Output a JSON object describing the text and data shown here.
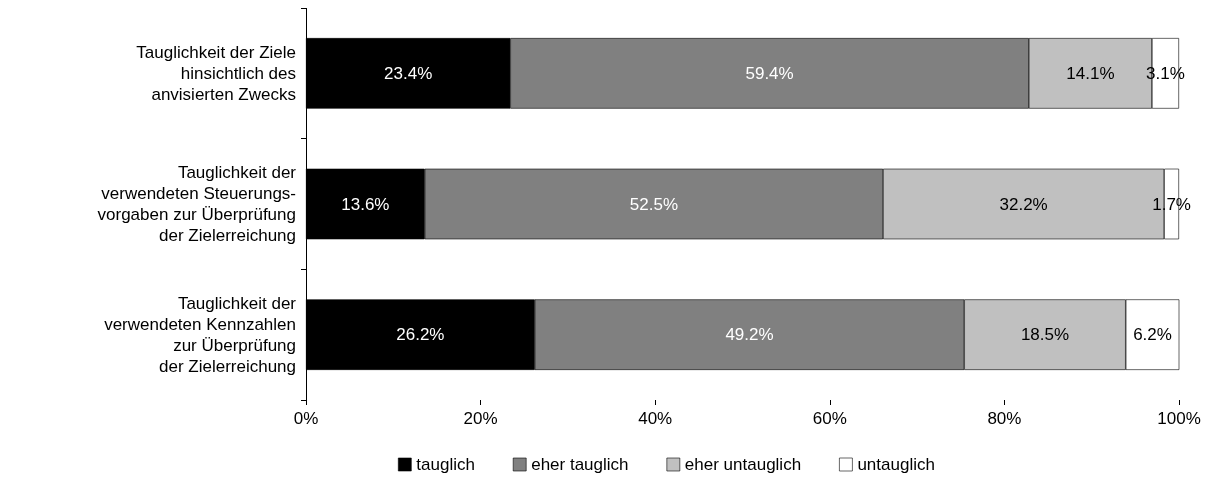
{
  "chart_data": {
    "type": "bar",
    "orientation": "horizontal",
    "stacked": true,
    "categories": [
      "Tauglichkeit der Ziele\nhinsichtlich des\nanvisierten Zwecks",
      "Tauglichkeit der\nverwendeten Steuerungs-\nvorgaben zur Überprüfung\nder Zielerreichung",
      "Tauglichkeit der\nverwendeten Kennzahlen\nzur Überprüfung\nder Zielerreichung"
    ],
    "series": [
      {
        "name": "tauglich",
        "color": "#000000",
        "values": [
          23.4,
          13.6,
          26.2
        ],
        "value_labels": [
          "23.4%",
          "13.6%",
          "26.2%"
        ]
      },
      {
        "name": "eher tauglich",
        "color": "#808080",
        "values": [
          59.4,
          52.5,
          49.2
        ],
        "value_labels": [
          "59.4%",
          "52.5%",
          "49.2%"
        ]
      },
      {
        "name": "eher untauglich",
        "color": "#c0c0c0",
        "values": [
          14.1,
          32.2,
          18.5
        ],
        "value_labels": [
          "14.1%",
          "32.2%",
          "18.5%"
        ]
      },
      {
        "name": "untauglich",
        "color": "#ffffff",
        "values": [
          3.1,
          1.7,
          6.2
        ],
        "value_labels": [
          "3.1%",
          "1.7%",
          "6.2%"
        ]
      }
    ],
    "xlim": [
      0,
      100
    ],
    "xticks": [
      {
        "value": 0,
        "label": "0%"
      },
      {
        "value": 20,
        "label": "20%"
      },
      {
        "value": 40,
        "label": "40%"
      },
      {
        "value": 60,
        "label": "60%"
      },
      {
        "value": 80,
        "label": "80%"
      },
      {
        "value": 100,
        "label": "100%"
      }
    ],
    "grid": false,
    "legend": "bottom"
  }
}
